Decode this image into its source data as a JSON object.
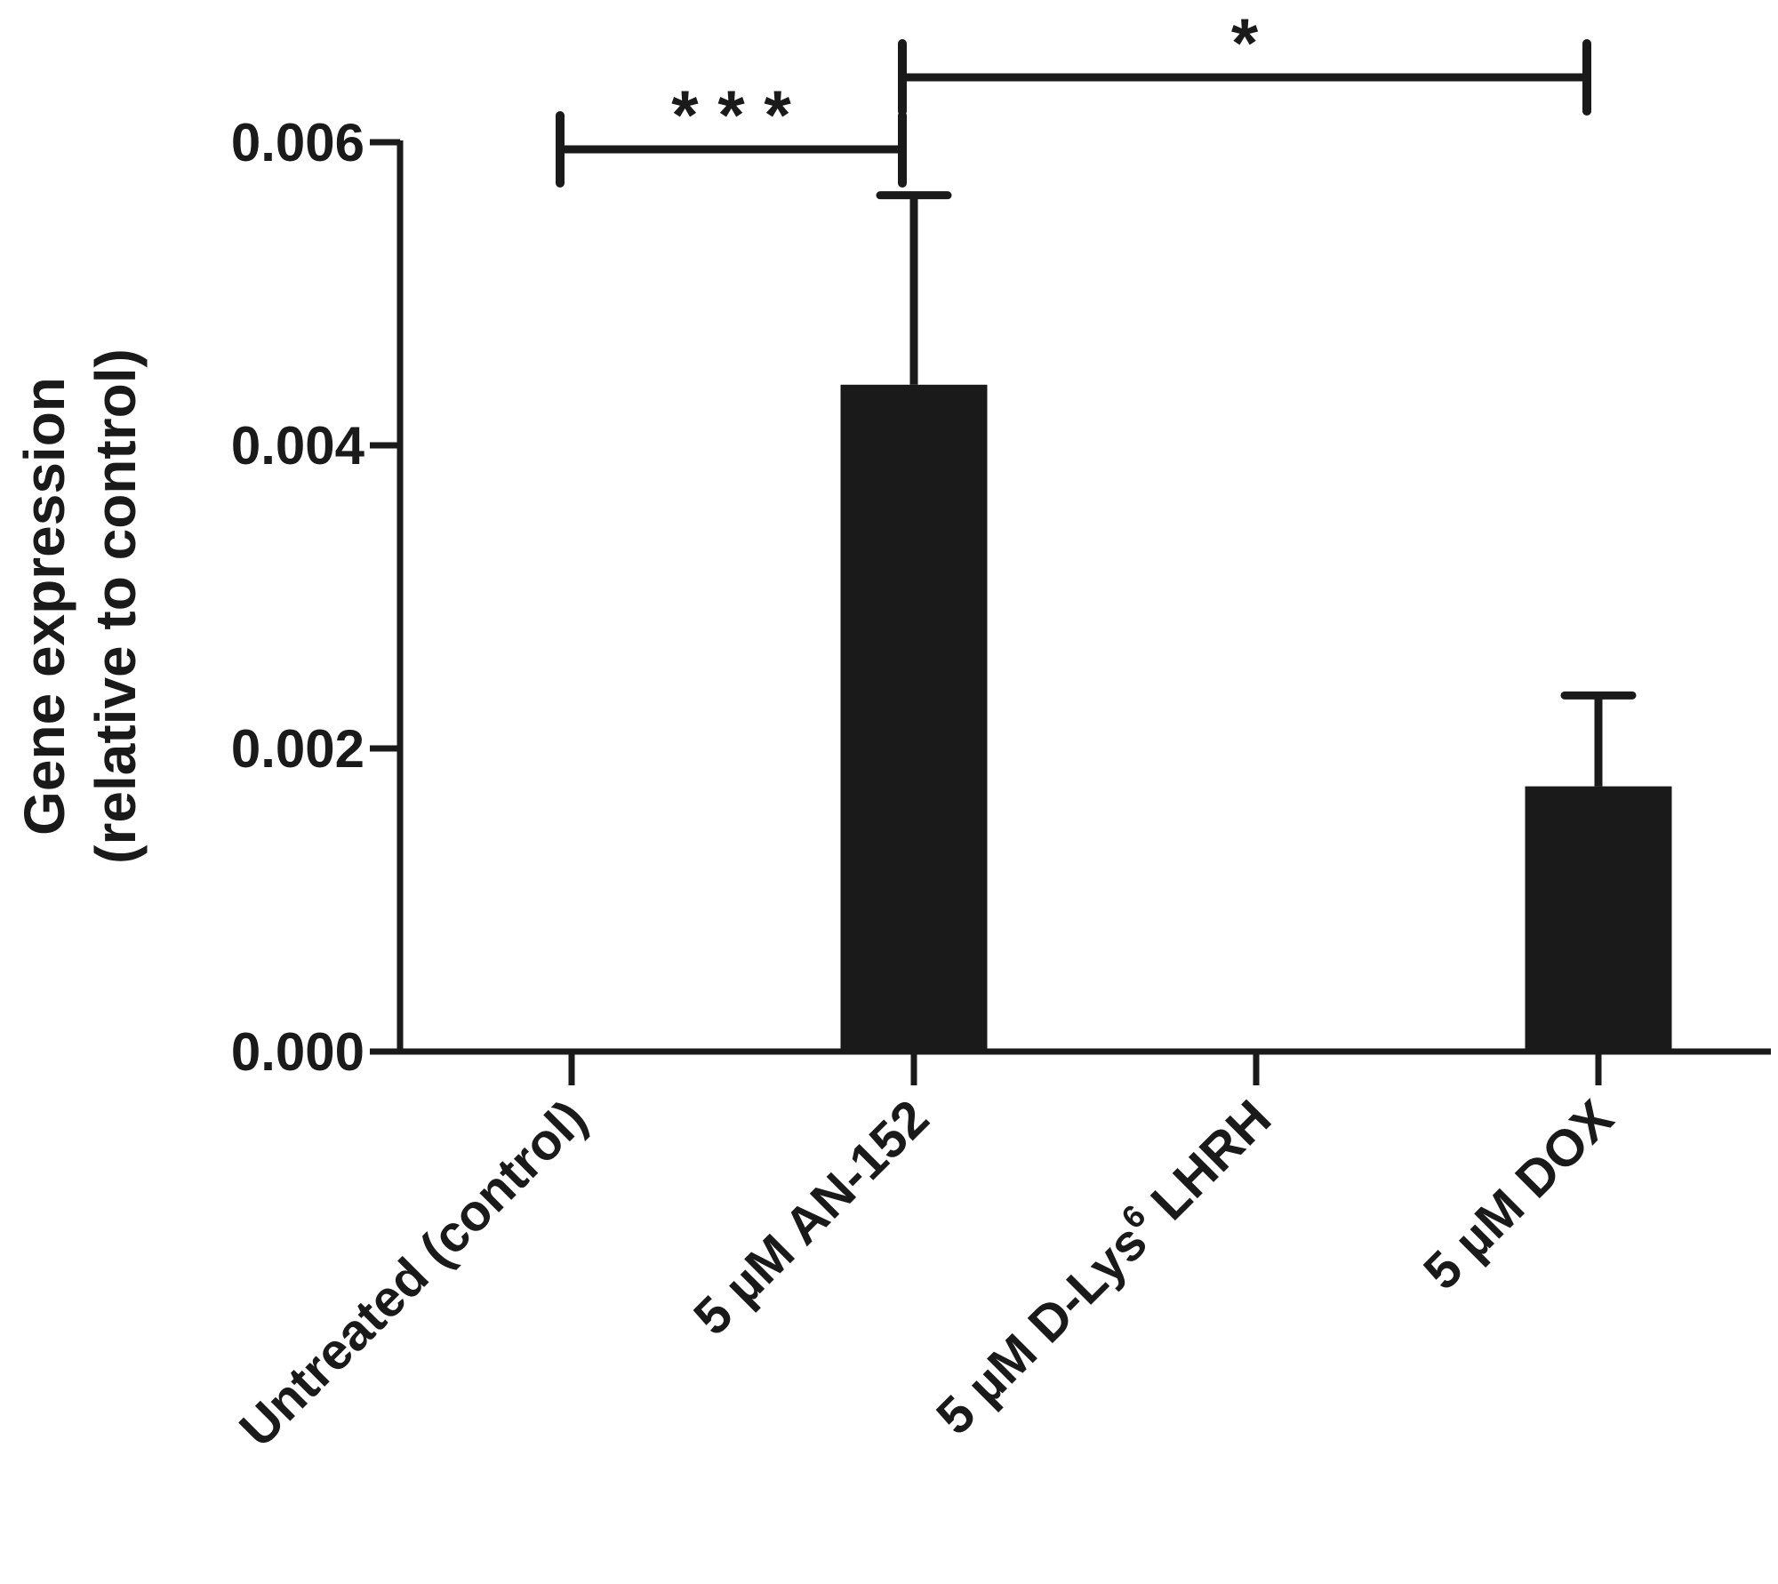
{
  "chart_data": {
    "type": "bar",
    "title": "",
    "xlabel": "",
    "ylabel_line1": "Gene expression",
    "ylabel_line2": "(relative to control)",
    "ylim": [
      0,
      0.006
    ],
    "yticks": [
      "0.000",
      "0.002",
      "0.004",
      "0.006"
    ],
    "ytick_values": [
      0,
      0.002,
      0.004,
      0.006
    ],
    "categories": [
      {
        "text": "Untreated (control)",
        "sup": "",
        "suffix": ""
      },
      {
        "text": "5 µM AN-152",
        "sup": "",
        "suffix": ""
      },
      {
        "text": "5 µM D-Lys",
        "sup": "6",
        "suffix": " LHRH"
      },
      {
        "text": "5 µM DOX",
        "sup": "",
        "suffix": ""
      }
    ],
    "values": [
      0,
      0.0044,
      0,
      0.00175
    ],
    "errors": [
      0,
      0.00125,
      0,
      0.0006
    ],
    "bar_color": "#1a1a1a",
    "significance": [
      {
        "from": 0,
        "to": 1,
        "label": "* * *"
      },
      {
        "from": 1,
        "to": 3,
        "label": "*"
      }
    ]
  }
}
